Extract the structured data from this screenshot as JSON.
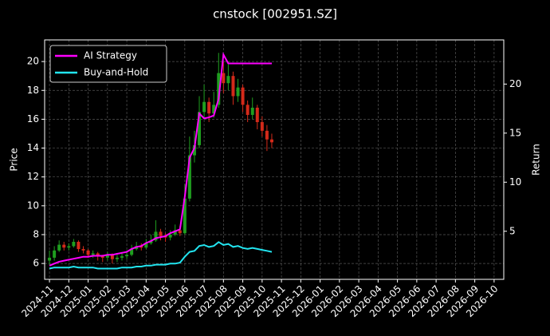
{
  "chart_data": {
    "type": "candlestick",
    "title": "cnstock [002951.SZ]",
    "ylabel": "Price",
    "y2label": "Return",
    "x": [
      0,
      0.25,
      0.5,
      0.75,
      1,
      1.25,
      1.5,
      1.75,
      2,
      2.25,
      2.5,
      2.75,
      3,
      3.25,
      3.5,
      3.75,
      4,
      4.25,
      4.5,
      4.75,
      5,
      5.25,
      5.5,
      5.75,
      6,
      6.25,
      6.5,
      6.75,
      7,
      7.25,
      7.5,
      7.75,
      8,
      8.25,
      8.5,
      8.75,
      9,
      9.25,
      9.5,
      9.75,
      10,
      10.25,
      10.5,
      10.75,
      11,
      11.25,
      11.5
    ],
    "open": [
      6.2,
      6.4,
      6.9,
      7.3,
      7.1,
      7.2,
      7.5,
      7.0,
      6.9,
      6.6,
      6.7,
      6.5,
      6.4,
      6.6,
      6.3,
      6.4,
      6.5,
      6.6,
      7.0,
      7.2,
      7.1,
      7.4,
      7.6,
      8.2,
      7.9,
      7.8,
      8.0,
      8.3,
      8.1,
      10.5,
      13.5,
      14.2,
      16.5,
      17.2,
      16.4,
      17.0,
      19.2,
      18.5,
      19.0,
      17.6,
      18.2,
      17.0,
      16.3,
      16.8,
      15.8,
      15.2,
      14.6
    ],
    "high": [
      6.9,
      7.2,
      7.6,
      7.5,
      7.4,
      7.7,
      7.6,
      7.2,
      7.0,
      6.9,
      6.8,
      6.6,
      6.8,
      6.7,
      6.6,
      6.8,
      6.9,
      7.3,
      7.5,
      7.4,
      7.7,
      8.0,
      9.0,
      8.4,
      8.1,
      8.3,
      8.7,
      8.6,
      11.5,
      14.8,
      15.2,
      17.6,
      18.4,
      17.5,
      17.9,
      20.6,
      20.0,
      19.8,
      19.3,
      18.8,
      18.4,
      17.3,
      17.5,
      17.0,
      16.2,
      15.6,
      15.0
    ],
    "low": [
      5.9,
      6.2,
      6.8,
      6.9,
      6.9,
      7.1,
      6.8,
      6.7,
      6.4,
      6.4,
      6.2,
      6.1,
      6.2,
      6.0,
      6.1,
      6.2,
      6.3,
      6.5,
      6.9,
      6.9,
      7.0,
      7.3,
      7.5,
      7.6,
      7.5,
      7.6,
      7.9,
      7.9,
      8.0,
      10.3,
      13.0,
      14.0,
      16.0,
      15.8,
      16.1,
      16.8,
      17.8,
      18.0,
      17.0,
      17.2,
      16.5,
      15.8,
      16.0,
      15.3,
      14.8,
      13.8,
      14.0
    ],
    "close": [
      6.4,
      6.9,
      7.3,
      7.1,
      7.2,
      7.5,
      7.0,
      6.9,
      6.6,
      6.7,
      6.5,
      6.4,
      6.6,
      6.3,
      6.4,
      6.5,
      6.6,
      7.0,
      7.2,
      7.1,
      7.4,
      7.6,
      8.2,
      7.9,
      7.8,
      8.0,
      8.3,
      8.1,
      10.5,
      13.5,
      14.2,
      16.5,
      17.2,
      16.4,
      17.0,
      19.2,
      18.5,
      19.0,
      17.6,
      18.2,
      17.0,
      16.3,
      16.8,
      15.8,
      15.2,
      14.6,
      14.4
    ],
    "up_color": "#1f9e1f",
    "down_color": "#d42a1a",
    "series": [
      {
        "name": "AI Strategy",
        "color": "#ff00ff",
        "axis": "y2",
        "values": [
          1.5,
          1.7,
          1.9,
          2.0,
          2.1,
          2.2,
          2.3,
          2.4,
          2.4,
          2.5,
          2.5,
          2.5,
          2.6,
          2.6,
          2.7,
          2.8,
          2.9,
          3.2,
          3.4,
          3.5,
          3.8,
          4.0,
          4.3,
          4.4,
          4.5,
          4.8,
          5.0,
          5.2,
          8.5,
          12.5,
          13.5,
          17.0,
          16.5,
          16.6,
          16.8,
          18.5,
          23.0,
          22.1,
          22.1,
          22.1,
          22.1,
          22.1,
          22.1,
          22.1,
          22.1,
          22.1,
          22.1
        ]
      },
      {
        "name": "Buy-and-Hold",
        "color": "#22e5f0",
        "axis": "y2",
        "values": [
          1.2,
          1.3,
          1.3,
          1.3,
          1.3,
          1.4,
          1.3,
          1.3,
          1.3,
          1.3,
          1.2,
          1.2,
          1.2,
          1.2,
          1.2,
          1.3,
          1.3,
          1.3,
          1.4,
          1.4,
          1.5,
          1.5,
          1.6,
          1.6,
          1.6,
          1.7,
          1.7,
          1.8,
          2.4,
          2.9,
          3.0,
          3.5,
          3.6,
          3.4,
          3.5,
          3.9,
          3.6,
          3.7,
          3.4,
          3.5,
          3.3,
          3.2,
          3.3,
          3.2,
          3.1,
          3.0,
          2.9
        ]
      }
    ],
    "xlim": [
      -0.25,
      23.5
    ],
    "xticks": [
      {
        "value": 0,
        "label": "2024-11"
      },
      {
        "value": 1,
        "label": "2024-12"
      },
      {
        "value": 2,
        "label": "2025-01"
      },
      {
        "value": 3,
        "label": "2025-02"
      },
      {
        "value": 4,
        "label": "2025-03"
      },
      {
        "value": 5,
        "label": "2025-04"
      },
      {
        "value": 6,
        "label": "2025-05"
      },
      {
        "value": 7,
        "label": "2025-06"
      },
      {
        "value": 8,
        "label": "2025-07"
      },
      {
        "value": 9,
        "label": "2025-08"
      },
      {
        "value": 10,
        "label": "2025-09"
      },
      {
        "value": 11,
        "label": "2025-10"
      },
      {
        "value": 12,
        "label": "2025-11"
      },
      {
        "value": 13,
        "label": "2025-12"
      },
      {
        "value": 14,
        "label": "2026-01"
      },
      {
        "value": 15,
        "label": "2026-02"
      },
      {
        "value": 16,
        "label": "2026-03"
      },
      {
        "value": 17,
        "label": "2026-04"
      },
      {
        "value": 18,
        "label": "2026-05"
      },
      {
        "value": 19,
        "label": "2026-06"
      },
      {
        "value": 20,
        "label": "2026-07"
      },
      {
        "value": 21,
        "label": "2026-08"
      },
      {
        "value": 22,
        "label": "2026-09"
      },
      {
        "value": 23,
        "label": "2026-10"
      }
    ],
    "ylim": [
      4.9,
      21.5
    ],
    "yticks": [
      6,
      8,
      10,
      12,
      14,
      16,
      18,
      20
    ],
    "y2lim": [
      0.1,
      24.5
    ],
    "y2ticks": [
      5,
      10,
      15,
      20
    ],
    "grid": true,
    "legend": "upper left"
  }
}
